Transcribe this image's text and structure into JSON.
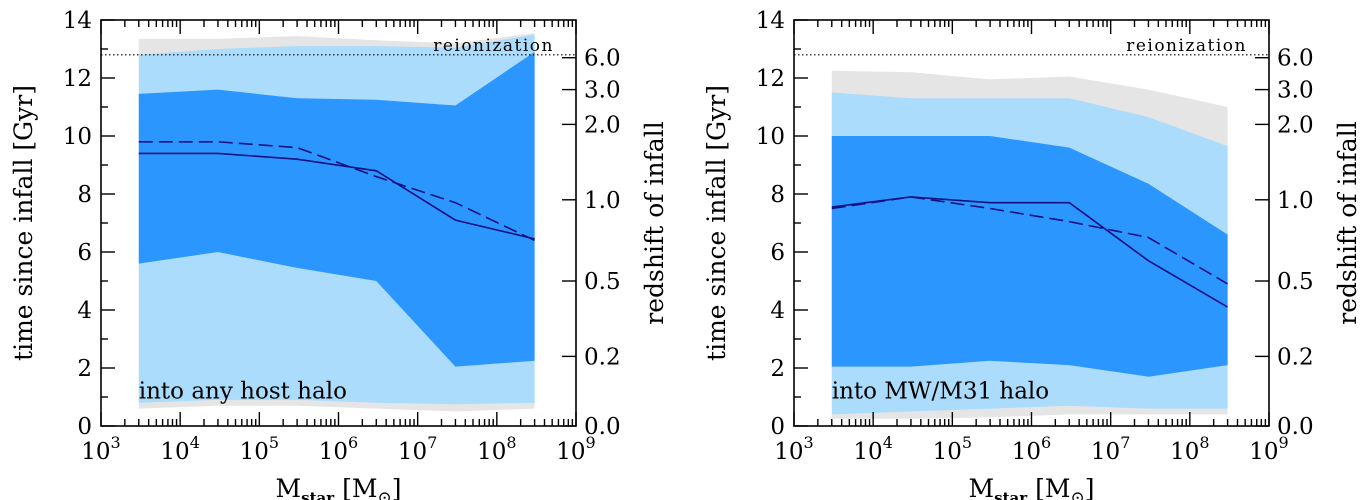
{
  "colors": {
    "band_95": "#e5e5e5",
    "band_84": "#abdcfb",
    "band_68": "#2b96fe",
    "median": "#121080",
    "mean": "#121080",
    "reion_line": "#000000"
  },
  "chart_data": [
    {
      "type": "area",
      "annotation": "into any host halo",
      "reionization_label": "reionization",
      "reionization_time": 12.8,
      "xlabel": "M",
      "xlabel_sub": "star",
      "xlabel_unit_prefix": " [M",
      "xlabel_unit_suffix": "]",
      "ylabel": "time since infall [Gyr]",
      "ylabel_right": "redshift of infall",
      "x_scale": "log",
      "xlim": [
        1000,
        1000000000
      ],
      "ylim": [
        0,
        14
      ],
      "x_tick_base": "10",
      "x_tick_exponents": [
        "3",
        "4",
        "5",
        "6",
        "7",
        "8",
        "9"
      ],
      "y_ticks": [
        "0",
        "2",
        "4",
        "6",
        "8",
        "10",
        "12",
        "14"
      ],
      "right_ticks": [
        {
          "label": "0.0",
          "t": 0
        },
        {
          "label": "0.2",
          "t": 2.4
        },
        {
          "label": "0.5",
          "t": 5.0
        },
        {
          "label": "1.0",
          "t": 7.8
        },
        {
          "label": "2.0",
          "t": 10.4
        },
        {
          "label": "3.0",
          "t": 11.6
        },
        {
          "label": "6.0",
          "t": 12.7
        }
      ],
      "x": [
        3000,
        30000,
        300000,
        3000000,
        30000000,
        300000000
      ],
      "band_95": {
        "lower": [
          0.6,
          0.7,
          0.7,
          0.6,
          0.5,
          0.6
        ],
        "upper": [
          13.35,
          13.35,
          13.45,
          13.3,
          13.2,
          13.55
        ]
      },
      "band_84": {
        "lower": [
          0.8,
          0.9,
          0.9,
          0.8,
          0.75,
          0.8
        ],
        "upper": [
          12.8,
          13.0,
          13.1,
          13.1,
          13.05,
          13.5
        ]
      },
      "band_68": {
        "lower": [
          5.6,
          6.0,
          5.45,
          5.0,
          2.05,
          2.25
        ],
        "upper": [
          11.45,
          11.6,
          11.3,
          11.25,
          11.05,
          12.9
        ]
      },
      "median": [
        9.4,
        9.4,
        9.2,
        8.8,
        7.1,
        6.45
      ],
      "mean": [
        9.8,
        9.8,
        9.6,
        8.6,
        7.7,
        6.4
      ]
    },
    {
      "type": "area",
      "annotation": "into MW/M31 halo",
      "reionization_label": "reionization",
      "reionization_time": 12.8,
      "xlabel": "M",
      "xlabel_sub": "star",
      "xlabel_unit_prefix": " [M",
      "xlabel_unit_suffix": "]",
      "ylabel": "time since infall [Gyr]",
      "ylabel_right": "redshift of infall",
      "x_scale": "log",
      "xlim": [
        1000,
        1000000000
      ],
      "ylim": [
        0,
        14
      ],
      "x_tick_base": "10",
      "x_tick_exponents": [
        "3",
        "4",
        "5",
        "6",
        "7",
        "8",
        "9"
      ],
      "y_ticks": [
        "0",
        "2",
        "4",
        "6",
        "8",
        "10",
        "12",
        "14"
      ],
      "right_ticks": [
        {
          "label": "0.0",
          "t": 0
        },
        {
          "label": "0.2",
          "t": 2.4
        },
        {
          "label": "0.5",
          "t": 5.0
        },
        {
          "label": "1.0",
          "t": 7.8
        },
        {
          "label": "2.0",
          "t": 10.4
        },
        {
          "label": "3.0",
          "t": 11.6
        },
        {
          "label": "6.0",
          "t": 12.7
        }
      ],
      "x": [
        3000,
        30000,
        300000,
        3000000,
        30000000,
        300000000
      ],
      "band_95": {
        "lower": [
          0.25,
          0.25,
          0.3,
          0.4,
          0.4,
          0.4
        ],
        "upper": [
          12.25,
          12.2,
          11.95,
          12.05,
          11.6,
          11.0
        ]
      },
      "band_84": {
        "lower": [
          0.4,
          0.5,
          0.6,
          0.7,
          0.6,
          0.6
        ],
        "upper": [
          11.5,
          11.3,
          11.3,
          11.3,
          10.65,
          9.65
        ]
      },
      "band_68": {
        "lower": [
          2.05,
          2.05,
          2.25,
          2.1,
          1.7,
          2.1
        ],
        "upper": [
          10.0,
          10.0,
          10.0,
          9.6,
          8.35,
          6.6
        ]
      },
      "median": [
        7.55,
        7.9,
        7.7,
        7.7,
        5.7,
        4.1
      ],
      "mean": [
        7.5,
        7.9,
        7.5,
        7.05,
        6.5,
        4.9
      ]
    }
  ]
}
